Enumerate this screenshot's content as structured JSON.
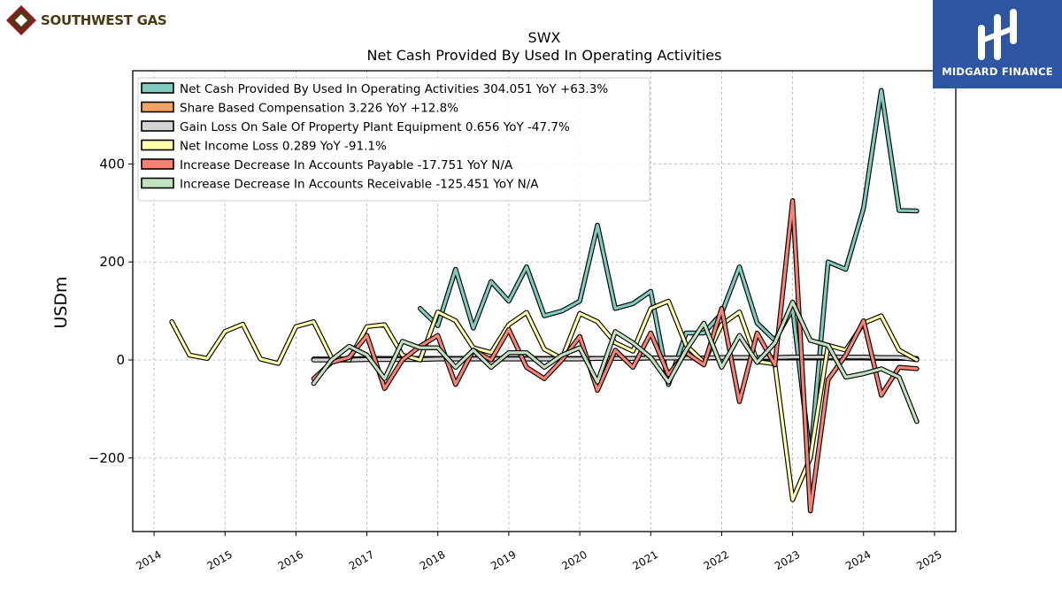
{
  "brand": {
    "left_logo_text": "SOUTHWEST GAS",
    "right_logo_text": "MIDGARD FINANCE",
    "right_logo_bg": "#2e55a4"
  },
  "chart_data": {
    "type": "line",
    "title": "SWX",
    "subtitle": "Net Cash Provided By Used In Operating Activities",
    "xlabel": "",
    "ylabel": "USDm",
    "xlim": [
      2013.7,
      2025.3
    ],
    "ylim": [
      -350,
      590
    ],
    "x_ticks": [
      2014,
      2015,
      2016,
      2017,
      2018,
      2019,
      2020,
      2021,
      2022,
      2023,
      2024,
      2025
    ],
    "y_ticks": [
      -200,
      0,
      200,
      400
    ],
    "y_tick_labels": [
      "−200",
      "0",
      "200",
      "400"
    ],
    "grid": true,
    "legend_position": "top-left",
    "series": [
      {
        "name": "Net Cash Provided By Used In Operating Activities",
        "legend_label": "Net Cash Provided By Used In Operating Activities  304.051 YoY +63.3%",
        "color": "#80cbc0",
        "x": [
          2017.75,
          2018.0,
          2018.25,
          2018.5,
          2018.75,
          2019.0,
          2019.25,
          2019.5,
          2019.75,
          2020.0,
          2020.25,
          2020.5,
          2020.75,
          2021.0,
          2021.25,
          2021.5,
          2021.75,
          2022.0,
          2022.25,
          2022.5,
          2022.75,
          2023.0,
          2023.25,
          2023.5,
          2023.75,
          2024.0,
          2024.25,
          2024.5,
          2024.75
        ],
        "y": [
          105,
          70,
          185,
          65,
          160,
          120,
          190,
          90,
          100,
          120,
          275,
          105,
          115,
          140,
          -50,
          55,
          55,
          95,
          190,
          75,
          40,
          105,
          -200,
          200,
          185,
          310,
          550,
          305,
          304
        ]
      },
      {
        "name": "Share Based Compensation",
        "legend_label": "Share Based Compensation  3.226 YoY +12.8%",
        "color": "#f4a460",
        "x": [
          2016.25,
          2016.5,
          2016.75,
          2017.0,
          2017.25,
          2017.5,
          2017.75,
          2018.0,
          2018.25,
          2018.5,
          2018.75,
          2019.0,
          2019.25,
          2019.5,
          2019.75,
          2020.0,
          2020.25,
          2020.5,
          2020.75,
          2021.0,
          2021.25,
          2021.5,
          2021.75,
          2022.0,
          2022.25,
          2022.5,
          2022.75,
          2023.0,
          2023.25,
          2023.5,
          2023.75,
          2024.0,
          2024.25,
          2024.5,
          2024.75
        ],
        "y": [
          2,
          2,
          2,
          3,
          3,
          3,
          3,
          3,
          3,
          3,
          3,
          3,
          3,
          3,
          3,
          3,
          3,
          3,
          3,
          4,
          4,
          4,
          4,
          4,
          4,
          4,
          4,
          4,
          4,
          4,
          4,
          4,
          3,
          3,
          3.2
        ]
      },
      {
        "name": "Gain Loss On Sale Of Property Plant Equipment",
        "legend_label": "Gain Loss On Sale Of Property Plant Equipment  0.656 YoY -47.7%",
        "color": "#d3d3d3",
        "x": [
          2016.25,
          2016.5,
          2016.75,
          2017.0,
          2017.25,
          2017.5,
          2017.75,
          2018.0,
          2018.25,
          2018.5,
          2018.75,
          2019.0,
          2019.25,
          2019.5,
          2019.75,
          2020.0,
          2020.25,
          2020.5,
          2020.75,
          2021.0,
          2021.25,
          2021.5,
          2021.75,
          2022.0,
          2022.25,
          2022.5,
          2022.75,
          2023.0,
          2023.25,
          2023.5,
          2023.75,
          2024.0,
          2024.25,
          2024.5,
          2024.75
        ],
        "y": [
          0,
          0,
          0,
          1,
          1,
          1,
          1,
          2,
          2,
          2,
          2,
          2,
          2,
          2,
          2,
          2,
          3,
          3,
          3,
          4,
          4,
          4,
          4,
          5,
          5,
          5,
          5,
          6,
          6,
          6,
          6,
          6,
          5,
          5,
          0.7
        ]
      },
      {
        "name": "Net Income Loss",
        "legend_label": "Net Income Loss  0.289 YoY -91.1%",
        "color": "#ffffaa",
        "x": [
          2014.25,
          2014.5,
          2014.75,
          2015.0,
          2015.25,
          2015.5,
          2015.75,
          2016.0,
          2016.25,
          2016.5,
          2016.75,
          2017.0,
          2017.25,
          2017.5,
          2017.75,
          2018.0,
          2018.25,
          2018.5,
          2018.75,
          2019.0,
          2019.25,
          2019.5,
          2019.75,
          2020.0,
          2020.25,
          2020.5,
          2020.75,
          2021.0,
          2021.25,
          2021.5,
          2021.75,
          2022.0,
          2022.25,
          2022.5,
          2022.75,
          2023.0,
          2023.25,
          2023.5,
          2023.75,
          2024.0,
          2024.25,
          2024.5,
          2024.75
        ],
        "y": [
          78,
          10,
          3,
          58,
          73,
          2,
          -7,
          68,
          78,
          5,
          0,
          68,
          72,
          10,
          0,
          98,
          80,
          25,
          15,
          72,
          97,
          22,
          3,
          95,
          78,
          35,
          18,
          105,
          120,
          30,
          -5,
          72,
          98,
          -3,
          -8,
          -285,
          -200,
          30,
          20,
          75,
          90,
          20,
          0.3
        ]
      },
      {
        "name": "Increase Decrease In Accounts Payable",
        "legend_label": "Increase Decrease In Accounts Payable  -17.751 YoY N/A",
        "color": "#fa8072",
        "x": [
          2016.25,
          2016.5,
          2016.75,
          2017.0,
          2017.25,
          2017.5,
          2017.75,
          2018.0,
          2018.25,
          2018.5,
          2018.75,
          2019.0,
          2019.25,
          2019.5,
          2019.75,
          2020.0,
          2020.25,
          2020.5,
          2020.75,
          2021.0,
          2021.25,
          2021.5,
          2021.75,
          2022.0,
          2022.25,
          2022.5,
          2022.75,
          2023.0,
          2023.25,
          2023.5,
          2023.75,
          2024.0,
          2024.25,
          2024.5,
          2024.75
        ],
        "y": [
          -38,
          -5,
          5,
          50,
          -58,
          0,
          28,
          50,
          -50,
          20,
          0,
          62,
          -15,
          -38,
          0,
          48,
          -62,
          20,
          -15,
          55,
          -30,
          15,
          -10,
          105,
          -85,
          55,
          -10,
          325,
          -308,
          -40,
          10,
          80,
          -72,
          -15,
          -17.8
        ]
      },
      {
        "name": "Increase Decrease In Accounts Receivable",
        "legend_label": "Increase Decrease In Accounts Receivable  -125.451 YoY N/A",
        "color": "#c1e1c1",
        "x": [
          2016.25,
          2016.5,
          2016.75,
          2017.0,
          2017.25,
          2017.5,
          2017.75,
          2018.0,
          2018.25,
          2018.5,
          2018.75,
          2019.0,
          2019.25,
          2019.5,
          2019.75,
          2020.0,
          2020.25,
          2020.5,
          2020.75,
          2021.0,
          2021.25,
          2021.5,
          2021.75,
          2022.0,
          2022.25,
          2022.5,
          2022.75,
          2023.0,
          2023.25,
          2023.5,
          2023.75,
          2024.0,
          2024.25,
          2024.5,
          2024.75
        ],
        "y": [
          -48,
          0,
          28,
          10,
          -38,
          38,
          25,
          25,
          -15,
          20,
          -15,
          15,
          15,
          -15,
          10,
          25,
          -45,
          58,
          35,
          5,
          -45,
          20,
          75,
          -15,
          50,
          -5,
          35,
          118,
          40,
          30,
          -35,
          -28,
          -18,
          -35,
          -125.5
        ]
      }
    ]
  }
}
